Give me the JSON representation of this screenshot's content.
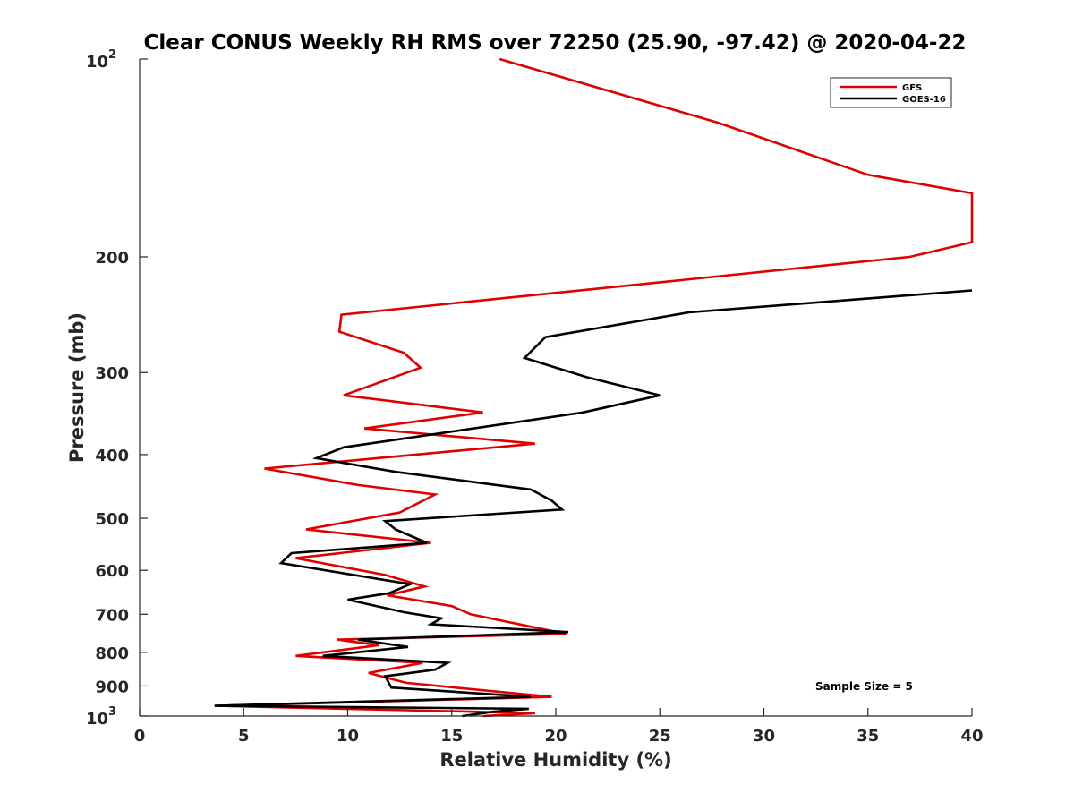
{
  "chart_data": {
    "type": "line",
    "title": "Clear CONUS Weekly RH RMS over 72250 (25.90, -97.42) @ 2020-04-22",
    "xlabel": "Relative Humidity (%)",
    "ylabel": "Pressure (mb)",
    "xlim": [
      0,
      40
    ],
    "ylim": [
      1000,
      100
    ],
    "y_scale": "log",
    "y_reversed": true,
    "x_ticks": [
      "0",
      "5",
      "10",
      "15",
      "20",
      "25",
      "30",
      "35",
      "40"
    ],
    "y_ticks": [
      {
        "value": 100,
        "base": "10",
        "exp": "2"
      },
      {
        "value": 200,
        "label": "200"
      },
      {
        "value": 300,
        "label": "300"
      },
      {
        "value": 400,
        "label": "400"
      },
      {
        "value": 500,
        "label": "500"
      },
      {
        "value": 600,
        "label": "600"
      },
      {
        "value": 700,
        "label": "700"
      },
      {
        "value": 800,
        "label": "800"
      },
      {
        "value": 900,
        "label": "900"
      },
      {
        "value": 1000,
        "base": "10",
        "exp": "3"
      }
    ],
    "grid": false,
    "legend_position": "top-right",
    "annotation": "Sample Size = 5",
    "series": [
      {
        "name": "GFS",
        "color": "#e00000",
        "points": [
          [
            17.3,
            100
          ],
          [
            27.8,
            125
          ],
          [
            35.0,
            150
          ],
          [
            40.0,
            160
          ],
          [
            40.0,
            190
          ],
          [
            37.0,
            200
          ],
          [
            9.7,
            245
          ],
          [
            9.6,
            260
          ],
          [
            12.7,
            280
          ],
          [
            13.5,
            295
          ],
          [
            9.8,
            325
          ],
          [
            16.5,
            345
          ],
          [
            10.8,
            365
          ],
          [
            19.0,
            385
          ],
          [
            6.0,
            420
          ],
          [
            10.5,
            445
          ],
          [
            14.2,
            460
          ],
          [
            12.5,
            490
          ],
          [
            8.0,
            520
          ],
          [
            14.0,
            545
          ],
          [
            7.5,
            575
          ],
          [
            11.8,
            610
          ],
          [
            13.7,
            635
          ],
          [
            11.9,
            655
          ],
          [
            15.0,
            680
          ],
          [
            15.9,
            700
          ],
          [
            20.5,
            750
          ],
          [
            9.5,
            765
          ],
          [
            11.5,
            780
          ],
          [
            7.5,
            810
          ],
          [
            13.6,
            830
          ],
          [
            11.0,
            860
          ],
          [
            12.8,
            890
          ],
          [
            19.8,
            935
          ],
          [
            3.8,
            965
          ],
          [
            19.0,
            990
          ],
          [
            16.5,
            1000
          ]
        ]
      },
      {
        "name": "GOES-16",
        "color": "#000000",
        "points": [
          [
            40.0,
            225
          ],
          [
            26.4,
            243
          ],
          [
            19.5,
            265
          ],
          [
            18.5,
            285
          ],
          [
            21.5,
            305
          ],
          [
            25.0,
            325
          ],
          [
            21.3,
            345
          ],
          [
            9.8,
            390
          ],
          [
            8.5,
            405
          ],
          [
            12.3,
            425
          ],
          [
            18.8,
            452
          ],
          [
            19.8,
            470
          ],
          [
            20.3,
            485
          ],
          [
            11.8,
            505
          ],
          [
            12.3,
            520
          ],
          [
            13.8,
            545
          ],
          [
            7.3,
            565
          ],
          [
            6.8,
            585
          ],
          [
            13.0,
            630
          ],
          [
            12.0,
            650
          ],
          [
            10.0,
            665
          ],
          [
            12.7,
            695
          ],
          [
            14.5,
            710
          ],
          [
            14.0,
            725
          ],
          [
            20.6,
            745
          ],
          [
            10.5,
            765
          ],
          [
            12.9,
            785
          ],
          [
            8.8,
            810
          ],
          [
            14.8,
            830
          ],
          [
            14.2,
            850
          ],
          [
            11.8,
            870
          ],
          [
            12.1,
            905
          ],
          [
            18.8,
            935
          ],
          [
            3.6,
            965
          ],
          [
            18.7,
            975
          ],
          [
            17.0,
            985
          ],
          [
            15.5,
            1000
          ]
        ]
      }
    ]
  }
}
